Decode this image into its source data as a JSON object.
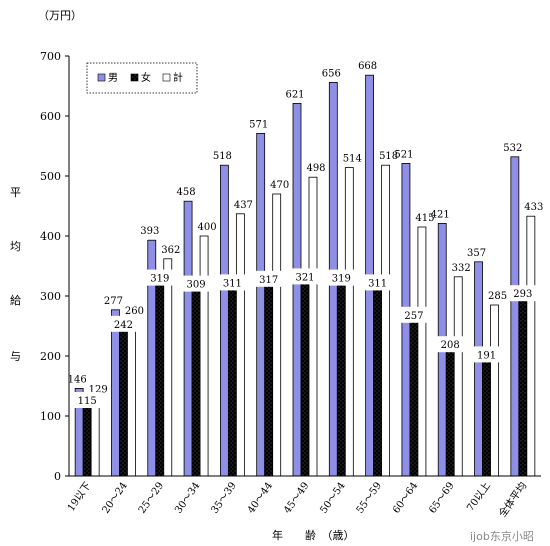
{
  "chart_data": {
    "type": "bar",
    "title": "",
    "unit_label": "（万円）",
    "ylabel_chars": [
      "平",
      "均",
      "給",
      "与"
    ],
    "xlabel": "年　　齢　（歳）",
    "ylim": [
      0,
      700
    ],
    "yticks": [
      0,
      100,
      200,
      300,
      400,
      500,
      600,
      700
    ],
    "grid": false,
    "legend_position": "top-left",
    "categories": [
      "19以下",
      "20～24",
      "25～29",
      "30～34",
      "35～39",
      "40～44",
      "45～49",
      "50～54",
      "55～59",
      "60～64",
      "65～69",
      "70以上",
      "全体平均"
    ],
    "series": [
      {
        "name": "男",
        "color": "#8f8fe6",
        "pattern": "solid",
        "values": [
          146,
          277,
          393,
          458,
          518,
          571,
          621,
          656,
          668,
          521,
          421,
          357,
          532
        ]
      },
      {
        "name": "女",
        "color": "#000000",
        "pattern": "dotted",
        "values": [
          115,
          242,
          319,
          309,
          311,
          317,
          321,
          319,
          311,
          257,
          208,
          191,
          293
        ]
      },
      {
        "name": "計",
        "color": "#ffffff",
        "pattern": "outline",
        "values": [
          129,
          260,
          362,
          400,
          437,
          470,
          498,
          514,
          518,
          415,
          332,
          285,
          433
        ]
      }
    ]
  },
  "watermark": "ijob东京小昭"
}
